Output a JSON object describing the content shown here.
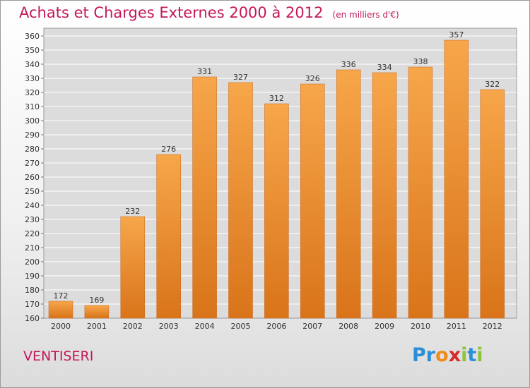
{
  "title": "Achats et Charges Externes 2000 à 2012",
  "subtitle": "(en milliers d'€)",
  "commune": "VENTISERI",
  "logo": {
    "letters": [
      "P",
      "r",
      "o",
      "x",
      "i",
      "t",
      "i"
    ],
    "colors": [
      "#2a8fd8",
      "#2a8fd8",
      "#f08a1c",
      "#d62a2a",
      "#8cc43a",
      "#2a8fd8",
      "#8cc43a"
    ]
  },
  "colors": {
    "bar_top": "#f7a64a",
    "bar_bottom": "#d9741a",
    "bar_stroke": "#c8651a",
    "text": "#c2185b",
    "grid": "#ffffff",
    "axis_text": "#333333"
  },
  "chart_data": {
    "type": "bar",
    "categories": [
      "2000",
      "2001",
      "2002",
      "2003",
      "2004",
      "2005",
      "2006",
      "2007",
      "2008",
      "2009",
      "2010",
      "2011",
      "2012"
    ],
    "values": [
      172,
      169,
      232,
      276,
      331,
      327,
      312,
      326,
      336,
      334,
      338,
      357,
      322
    ],
    "ylim": [
      160,
      360
    ],
    "yticks": [
      160,
      170,
      180,
      190,
      200,
      210,
      220,
      230,
      240,
      250,
      260,
      270,
      280,
      290,
      300,
      310,
      320,
      330,
      340,
      350,
      360
    ],
    "grid": true,
    "data_labels": true
  }
}
